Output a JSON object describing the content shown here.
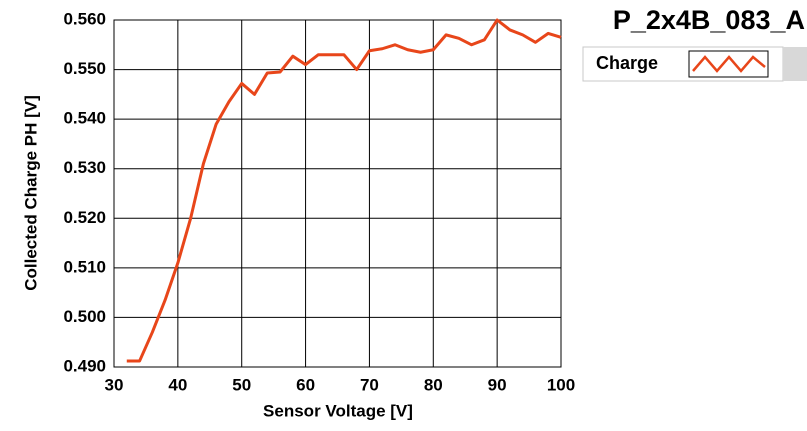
{
  "chart_data": {
    "type": "line",
    "title": "P_2x4B_083_A",
    "x_label": "Sensor Voltage [V]",
    "y_label": "Collected Charge PH [V]",
    "xlim": [
      30,
      100
    ],
    "ylim": [
      0.49,
      0.56
    ],
    "xticks": [
      30,
      40,
      50,
      60,
      70,
      80,
      90,
      100
    ],
    "yticks": [
      {
        "value": 0.49,
        "label": "0.490"
      },
      {
        "value": 0.5,
        "label": "0.500"
      },
      {
        "value": 0.51,
        "label": "0.510"
      },
      {
        "value": 0.52,
        "label": "0.520"
      },
      {
        "value": 0.53,
        "label": "0.530"
      },
      {
        "value": 0.54,
        "label": "0.540"
      },
      {
        "value": 0.55,
        "label": "0.550"
      },
      {
        "value": 0.56,
        "label": "0.560"
      }
    ],
    "grid": true,
    "legend": "top-right",
    "x": [
      32,
      34,
      36,
      38,
      40,
      42,
      44,
      46,
      48,
      50,
      52,
      54,
      56,
      58,
      60,
      62,
      64,
      66,
      68,
      70,
      72,
      74,
      76,
      78,
      80,
      82,
      84,
      86,
      88,
      90,
      92,
      94,
      96,
      98,
      100
    ],
    "series": [
      {
        "name": "Charge",
        "color": "#e8461a",
        "values": [
          0.4912,
          0.4912,
          0.497,
          0.5035,
          0.511,
          0.52,
          0.531,
          0.539,
          0.5435,
          0.5472,
          0.545,
          0.5493,
          0.5495,
          0.5527,
          0.551,
          0.553,
          0.553,
          0.553,
          0.55,
          0.5538,
          0.5542,
          0.555,
          0.554,
          0.5535,
          0.554,
          0.557,
          0.5563,
          0.555,
          0.556,
          0.56,
          0.558,
          0.557,
          0.5555,
          0.5573,
          0.5565
        ]
      }
    ]
  }
}
